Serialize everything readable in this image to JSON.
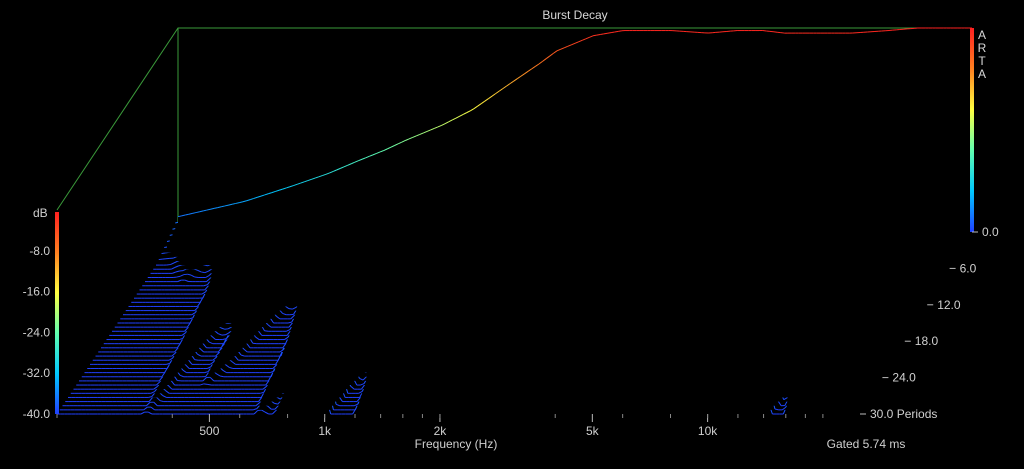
{
  "chart_data": {
    "type": "waterfall",
    "title": "Burst Decay",
    "brand": "ARTA",
    "xlabel": "Frequency (Hz)",
    "ylabel": "dB",
    "zlabel": "Periods",
    "gated_text": "Gated 5.74 ms",
    "x_scale": "log",
    "xlim": [
      200,
      25000
    ],
    "x_ticks": [
      {
        "value": 500,
        "label": "500"
      },
      {
        "value": 1000,
        "label": "1k"
      },
      {
        "value": 2000,
        "label": "2k"
      },
      {
        "value": 5000,
        "label": "5k"
      },
      {
        "value": 10000,
        "label": "10k"
      }
    ],
    "ylim": [
      -40,
      0
    ],
    "y_ticks": [
      {
        "value": -8,
        "label": "-8.0"
      },
      {
        "value": -16,
        "label": "-16.0"
      },
      {
        "value": -24,
        "label": "-24.0"
      },
      {
        "value": -32,
        "label": "-32.0"
      },
      {
        "value": -40,
        "label": "-40.0"
      }
    ],
    "zlim": [
      0,
      30
    ],
    "z_ticks": [
      {
        "value": 0,
        "label": "0.0"
      },
      {
        "value": 6,
        "label": "6.0"
      },
      {
        "value": 12,
        "label": "12.0"
      },
      {
        "value": 18,
        "label": "18.0"
      },
      {
        "value": 24,
        "label": "24.0"
      },
      {
        "value": 30,
        "label": "30.0"
      }
    ],
    "slice_count": 45,
    "base_response": {
      "freq": [
        200,
        300,
        400,
        500,
        600,
        700,
        800,
        1000,
        1200,
        1500,
        1800,
        2000,
        2500,
        3000,
        3500,
        4000,
        5000,
        6000,
        7000,
        8000,
        10000,
        12000,
        15000,
        18000,
        20000,
        25000
      ],
      "db": [
        -37,
        -34,
        -31,
        -28.5,
        -26,
        -24,
        -22,
        -19,
        -16,
        -11,
        -7,
        -4.5,
        -1.5,
        -0.5,
        -0.5,
        -0.5,
        -1,
        -0.5,
        -0.5,
        -1,
        -1,
        -1,
        -0.5,
        0,
        0,
        0
      ]
    },
    "colormap": [
      "#2040ff",
      "#00c8ff",
      "#60ffb0",
      "#ffff40",
      "#ff8020",
      "#ff2020"
    ]
  }
}
